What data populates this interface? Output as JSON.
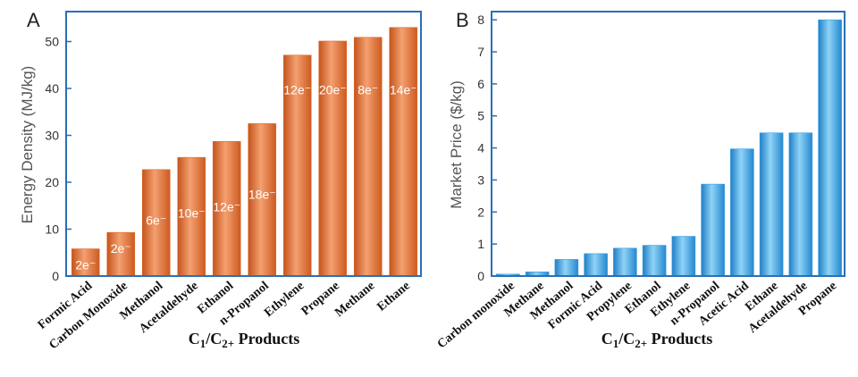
{
  "chart_data": [
    {
      "type": "bar",
      "panel_label": "A",
      "ylabel": "Energy Density  (MJ/kg)",
      "xlabel_parts": [
        "C",
        "1",
        "/C",
        "2+",
        " Products"
      ],
      "ylim": [
        0,
        56
      ],
      "yticks": [
        0,
        10,
        20,
        30,
        40,
        50
      ],
      "bar_color": "#e06a2b",
      "categories": [
        "Formic Acid",
        "Carbon Monoxide",
        "Methanol",
        "Acetaldehyde",
        "Ethanol",
        "n-Propanol",
        "Ethylene",
        "Propane",
        "Methane",
        "Ethane"
      ],
      "values": [
        5.8,
        9.3,
        22.7,
        25.3,
        28.7,
        32.5,
        47.1,
        50.1,
        50.9,
        53.0
      ],
      "bar_labels": [
        "2e⁻",
        "2e⁻",
        "6e⁻",
        "10e⁻",
        "12e⁻",
        "18e⁻",
        "12e⁻",
        "20e⁻",
        "8e⁻",
        "14e⁻"
      ]
    },
    {
      "type": "bar",
      "panel_label": "B",
      "ylabel": "Market Price  ($/kg)",
      "xlabel_parts": [
        "C",
        "1",
        "/C",
        "2+",
        " Products"
      ],
      "ylim": [
        0,
        8.2
      ],
      "yticks": [
        0,
        1,
        2,
        3,
        4,
        5,
        6,
        7,
        8
      ],
      "bar_color": "#3a9ee0",
      "categories": [
        "Carbon monoxide",
        "Methane",
        "Methanol",
        "Formic Acid",
        "Propylene",
        "Ethanol",
        "Ethylene",
        "n-Propanol",
        "Acetic Acid",
        "Ethane",
        "Acetaldehyde",
        "Propane"
      ],
      "values": [
        0.06,
        0.13,
        0.52,
        0.7,
        0.87,
        0.96,
        1.24,
        2.87,
        3.97,
        4.47,
        4.47,
        8.0
      ]
    }
  ]
}
